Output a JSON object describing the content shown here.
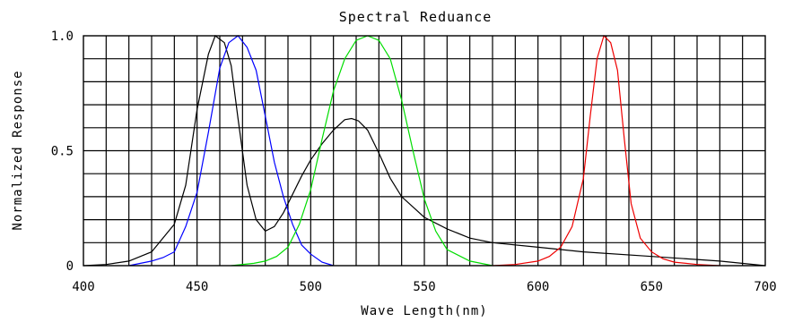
{
  "chart_data": {
    "type": "line",
    "title": "Spectral  Reduance",
    "xlabel": "Wave Length(nm)",
    "ylabel": "Normalized  Response",
    "xlim": [
      400,
      700
    ],
    "ylim": [
      0,
      1.0
    ],
    "x_ticks": [
      400,
      450,
      500,
      550,
      600,
      650,
      700
    ],
    "y_ticks": [
      {
        "value": 0,
        "label": "0"
      },
      {
        "value": 0.5,
        "label": "0.5"
      },
      {
        "value": 1.0,
        "label": "1.0"
      }
    ],
    "x_grid_step": 10,
    "y_grid_step": 0.1,
    "grid": true,
    "series": [
      {
        "color": "#000000",
        "x": [
          400,
          410,
          420,
          430,
          440,
          445,
          450,
          455,
          458,
          462,
          465,
          468,
          472,
          476,
          480,
          484,
          488,
          492,
          496,
          500,
          505,
          510,
          515,
          518,
          521,
          525,
          530,
          535,
          540,
          550,
          560,
          570,
          580,
          600,
          620,
          650,
          680,
          700
        ],
        "y": [
          0,
          0.005,
          0.02,
          0.06,
          0.18,
          0.35,
          0.68,
          0.92,
          1.0,
          0.97,
          0.87,
          0.64,
          0.35,
          0.2,
          0.15,
          0.17,
          0.23,
          0.31,
          0.39,
          0.46,
          0.53,
          0.59,
          0.635,
          0.64,
          0.63,
          0.59,
          0.49,
          0.38,
          0.3,
          0.21,
          0.16,
          0.12,
          0.1,
          0.08,
          0.06,
          0.04,
          0.02,
          0
        ]
      },
      {
        "color": "#0000ff",
        "x": [
          420,
          430,
          435,
          440,
          445,
          450,
          455,
          460,
          464,
          468,
          472,
          476,
          480,
          484,
          488,
          492,
          496,
          500,
          505,
          510
        ],
        "y": [
          0,
          0.02,
          0.035,
          0.06,
          0.17,
          0.32,
          0.58,
          0.86,
          0.97,
          1.0,
          0.95,
          0.85,
          0.65,
          0.45,
          0.3,
          0.18,
          0.09,
          0.05,
          0.015,
          0
        ]
      },
      {
        "color": "#00dd00",
        "x": [
          465,
          475,
          480,
          485,
          490,
          495,
          500,
          505,
          510,
          515,
          520,
          525,
          530,
          535,
          540,
          545,
          550,
          555,
          560,
          570,
          580
        ],
        "y": [
          0,
          0.01,
          0.02,
          0.04,
          0.08,
          0.18,
          0.33,
          0.55,
          0.76,
          0.9,
          0.98,
          1.0,
          0.98,
          0.9,
          0.72,
          0.5,
          0.29,
          0.15,
          0.07,
          0.02,
          0
        ]
      },
      {
        "color": "#ee0000",
        "x": [
          580,
          590,
          600,
          605,
          610,
          615,
          620,
          623,
          626,
          629,
          632,
          635,
          638,
          641,
          645,
          650,
          655,
          660,
          670,
          680
        ],
        "y": [
          0,
          0.005,
          0.02,
          0.04,
          0.08,
          0.17,
          0.38,
          0.65,
          0.9,
          1.0,
          0.97,
          0.85,
          0.55,
          0.27,
          0.12,
          0.06,
          0.03,
          0.015,
          0.005,
          0
        ]
      }
    ]
  }
}
